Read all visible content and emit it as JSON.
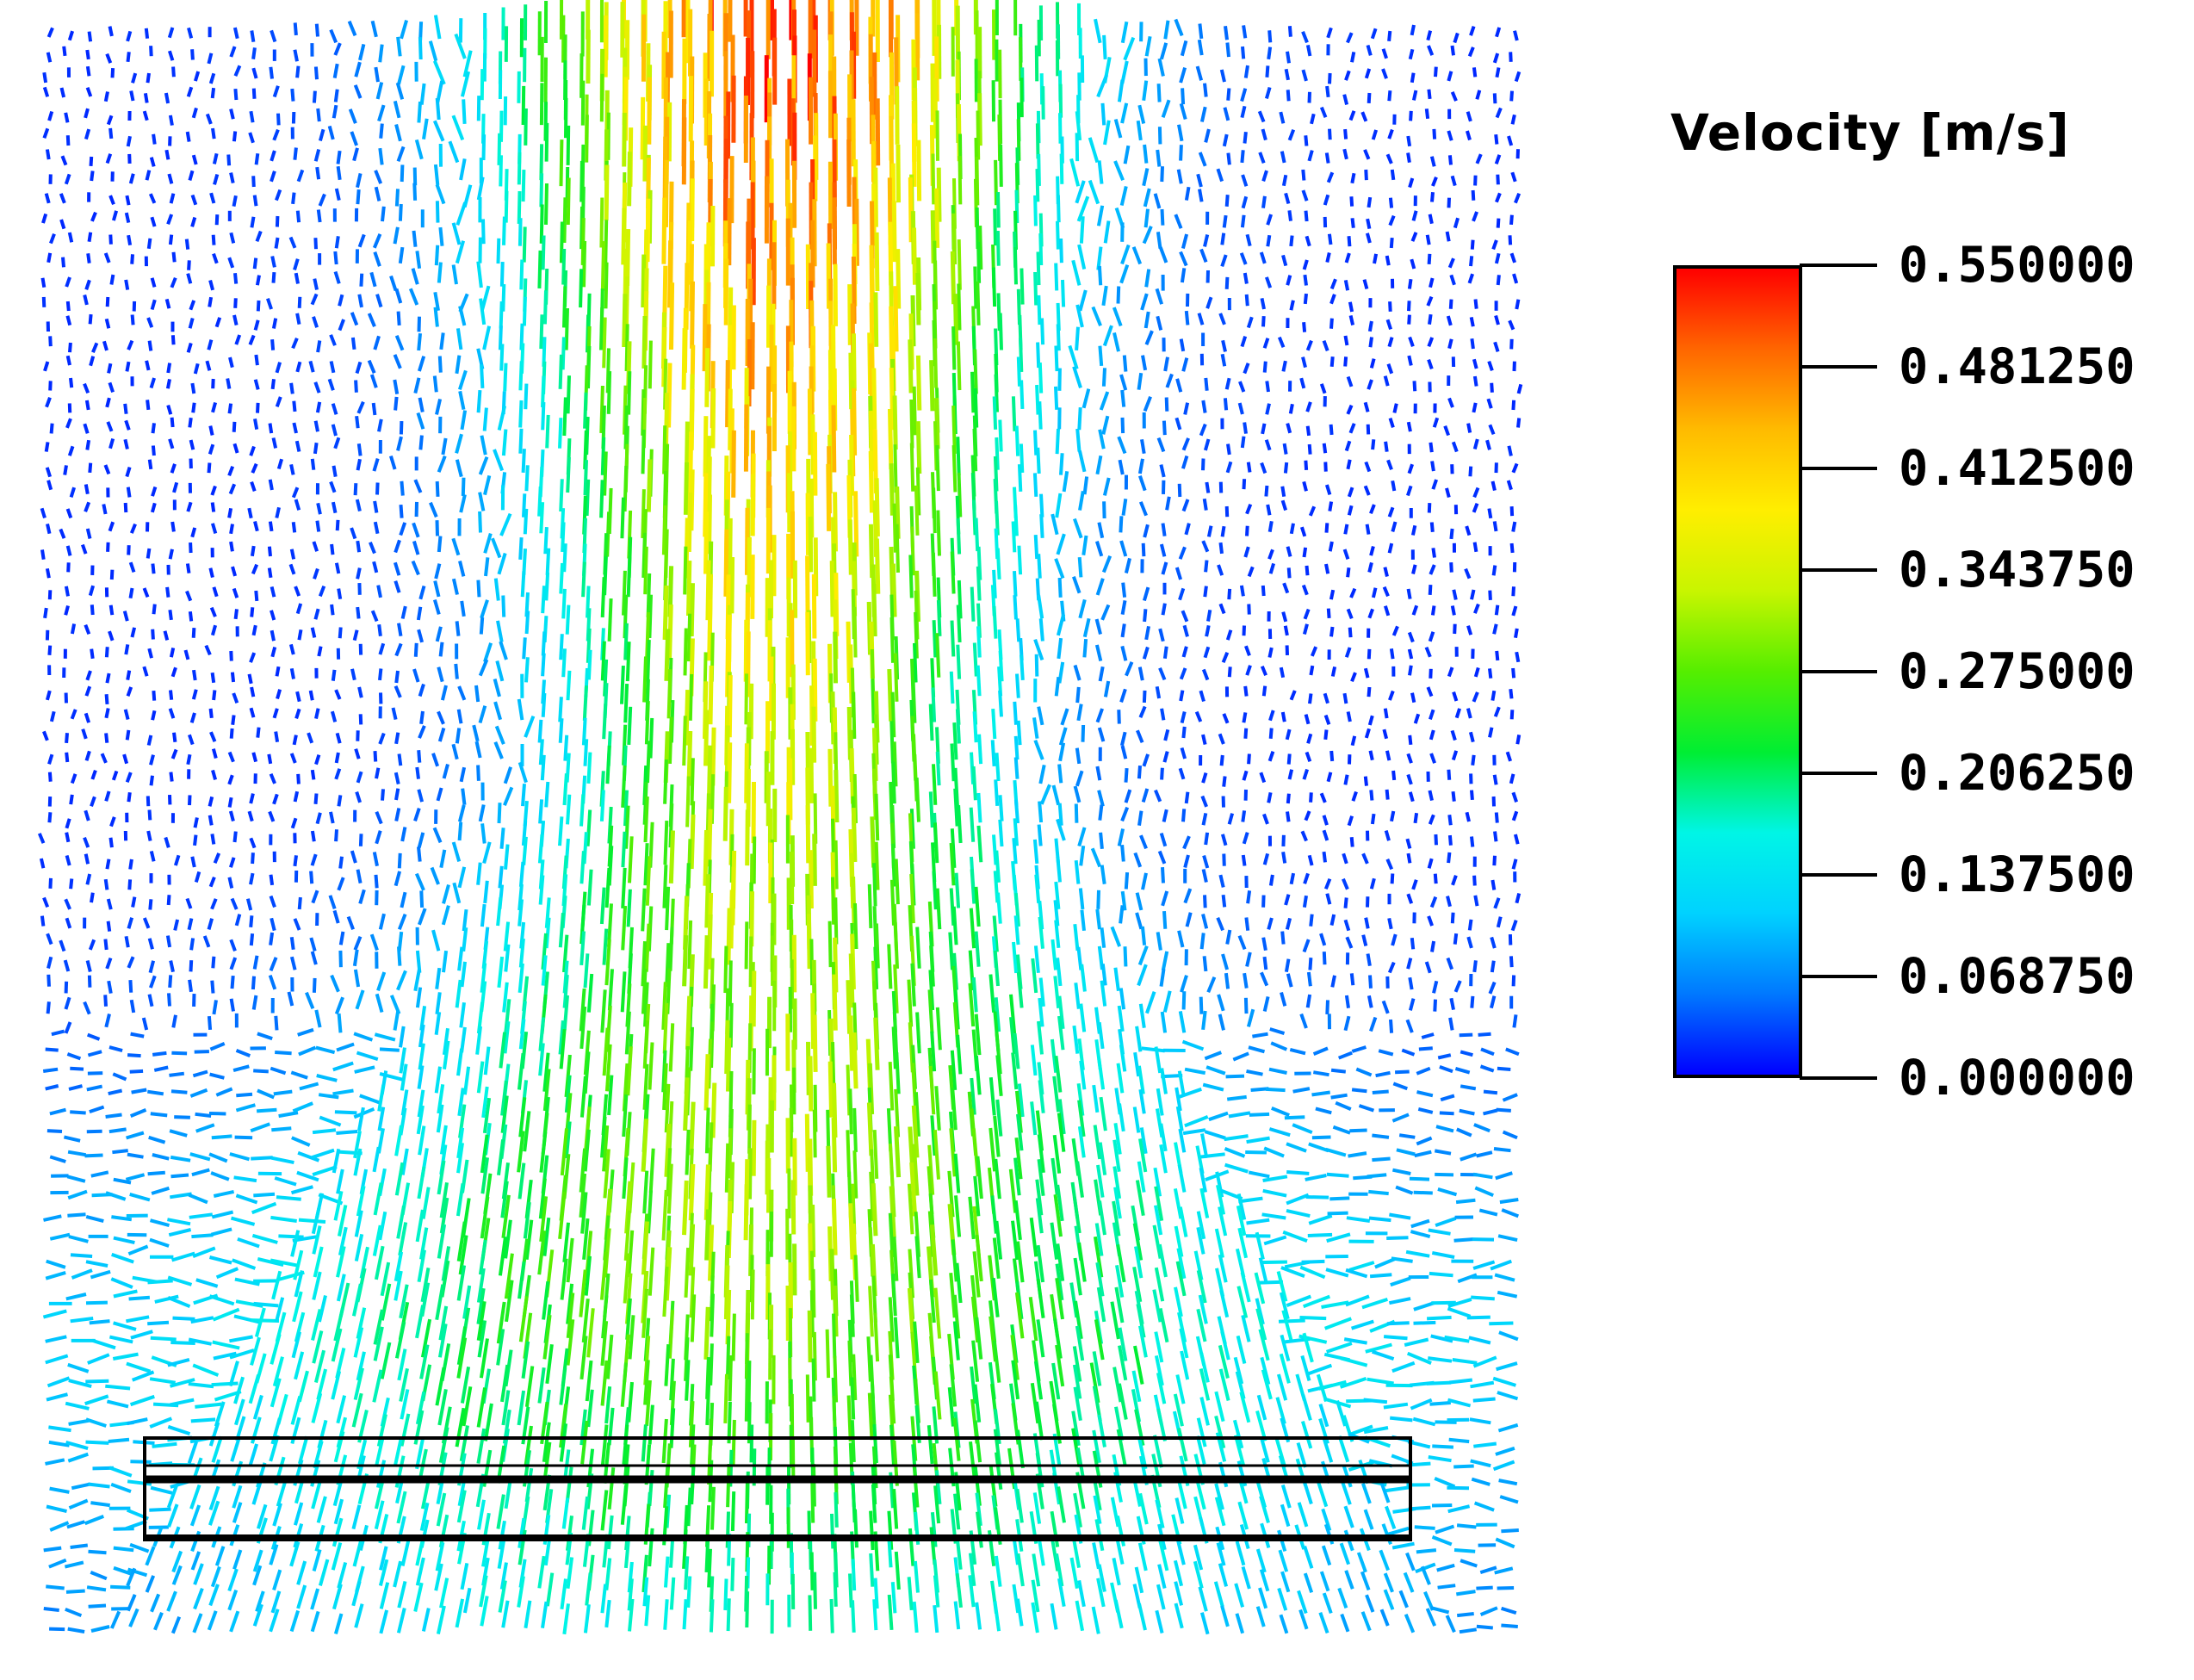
{
  "legend": {
    "title": "Velocity [m/s]",
    "unit": "m/s",
    "min": 0.0,
    "max": 0.55,
    "gradient_colors": [
      "#0000ff",
      "#0078ff",
      "#00d2ff",
      "#00f5e6",
      "#00ee33",
      "#55ee00",
      "#c8f500",
      "#ffee00",
      "#ffbb00",
      "#ff6600",
      "#ff0000"
    ],
    "ticks": [
      "0.550000",
      "0.481250",
      "0.412500",
      "0.343750",
      "0.275000",
      "0.206250",
      "0.137500",
      "0.068750",
      "0.000000"
    ]
  }
}
